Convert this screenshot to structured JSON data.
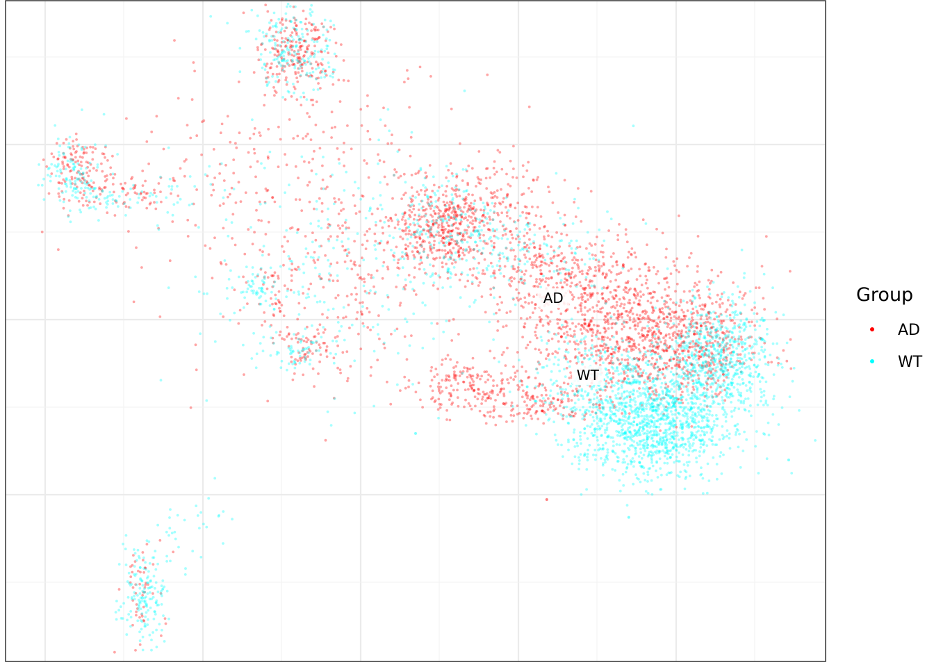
{
  "chart_data": {
    "type": "scatter",
    "title": "",
    "xlabel": "",
    "ylabel": "",
    "xlim": [
      0,
      1
    ],
    "ylim": [
      0,
      1
    ],
    "grid": true,
    "legend": {
      "title": "Group",
      "placement": "right"
    },
    "series": [
      {
        "name": "AD",
        "color": "#ff0000",
        "clusters": [
          {
            "cx": 0.355,
            "cy": 0.915,
            "sx": 0.022,
            "sy": 0.035,
            "n": 220
          },
          {
            "cx": 0.09,
            "cy": 0.745,
            "sx": 0.02,
            "sy": 0.028,
            "n": 120
          },
          {
            "cx": 0.14,
            "cy": 0.71,
            "sx": 0.03,
            "sy": 0.012,
            "n": 60
          },
          {
            "cx": 0.535,
            "cy": 0.655,
            "sx": 0.028,
            "sy": 0.035,
            "n": 380
          },
          {
            "cx": 0.59,
            "cy": 0.69,
            "sx": 0.05,
            "sy": 0.04,
            "n": 200
          },
          {
            "cx": 0.67,
            "cy": 0.59,
            "sx": 0.05,
            "sy": 0.035,
            "n": 260
          },
          {
            "cx": 0.76,
            "cy": 0.51,
            "sx": 0.07,
            "sy": 0.055,
            "n": 900
          },
          {
            "cx": 0.83,
            "cy": 0.47,
            "sx": 0.04,
            "sy": 0.04,
            "n": 350
          },
          {
            "cx": 0.56,
            "cy": 0.42,
            "sx": 0.04,
            "sy": 0.02,
            "n": 160
          },
          {
            "cx": 0.64,
            "cy": 0.39,
            "sx": 0.05,
            "sy": 0.015,
            "n": 160
          },
          {
            "cx": 0.37,
            "cy": 0.47,
            "sx": 0.02,
            "sy": 0.02,
            "n": 60
          },
          {
            "cx": 0.33,
            "cy": 0.56,
            "sx": 0.01,
            "sy": 0.04,
            "n": 40
          },
          {
            "cx": 0.165,
            "cy": 0.105,
            "sx": 0.012,
            "sy": 0.035,
            "n": 50
          },
          {
            "cx": 0.34,
            "cy": 0.72,
            "sx": 0.1,
            "sy": 0.1,
            "n": 320
          },
          {
            "cx": 0.43,
            "cy": 0.55,
            "sx": 0.05,
            "sy": 0.07,
            "n": 150
          }
        ]
      },
      {
        "name": "WT",
        "color": "#00ffff",
        "clusters": [
          {
            "cx": 0.35,
            "cy": 0.925,
            "sx": 0.025,
            "sy": 0.035,
            "n": 200
          },
          {
            "cx": 0.08,
            "cy": 0.74,
            "sx": 0.018,
            "sy": 0.03,
            "n": 110
          },
          {
            "cx": 0.12,
            "cy": 0.7,
            "sx": 0.02,
            "sy": 0.01,
            "n": 40
          },
          {
            "cx": 0.54,
            "cy": 0.66,
            "sx": 0.035,
            "sy": 0.04,
            "n": 180
          },
          {
            "cx": 0.64,
            "cy": 0.62,
            "sx": 0.05,
            "sy": 0.04,
            "n": 120
          },
          {
            "cx": 0.79,
            "cy": 0.36,
            "sx": 0.05,
            "sy": 0.04,
            "n": 1200
          },
          {
            "cx": 0.87,
            "cy": 0.46,
            "sx": 0.035,
            "sy": 0.045,
            "n": 650
          },
          {
            "cx": 0.73,
            "cy": 0.43,
            "sx": 0.05,
            "sy": 0.04,
            "n": 280
          },
          {
            "cx": 0.31,
            "cy": 0.57,
            "sx": 0.01,
            "sy": 0.015,
            "n": 40
          },
          {
            "cx": 0.36,
            "cy": 0.47,
            "sx": 0.018,
            "sy": 0.012,
            "n": 50
          },
          {
            "cx": 0.17,
            "cy": 0.1,
            "sx": 0.016,
            "sy": 0.04,
            "n": 160
          },
          {
            "cx": 0.22,
            "cy": 0.2,
            "sx": 0.03,
            "sy": 0.03,
            "n": 30
          },
          {
            "cx": 0.38,
            "cy": 0.6,
            "sx": 0.1,
            "sy": 0.1,
            "n": 260
          },
          {
            "cx": 0.2,
            "cy": 0.71,
            "sx": 0.04,
            "sy": 0.02,
            "n": 30
          }
        ]
      }
    ],
    "annotations": [
      {
        "text": "AD",
        "x": 0.668,
        "y": 0.55
      },
      {
        "text": "WT",
        "x": 0.71,
        "y": 0.433
      }
    ],
    "outliers": [
      {
        "series": "WT",
        "x": 0.955,
        "y": 0.305
      },
      {
        "series": "WT",
        "x": 0.76,
        "y": 0.218
      },
      {
        "series": "AD",
        "x": 0.66,
        "y": 0.245
      },
      {
        "series": "WT",
        "x": 0.5,
        "y": 0.345
      }
    ]
  }
}
